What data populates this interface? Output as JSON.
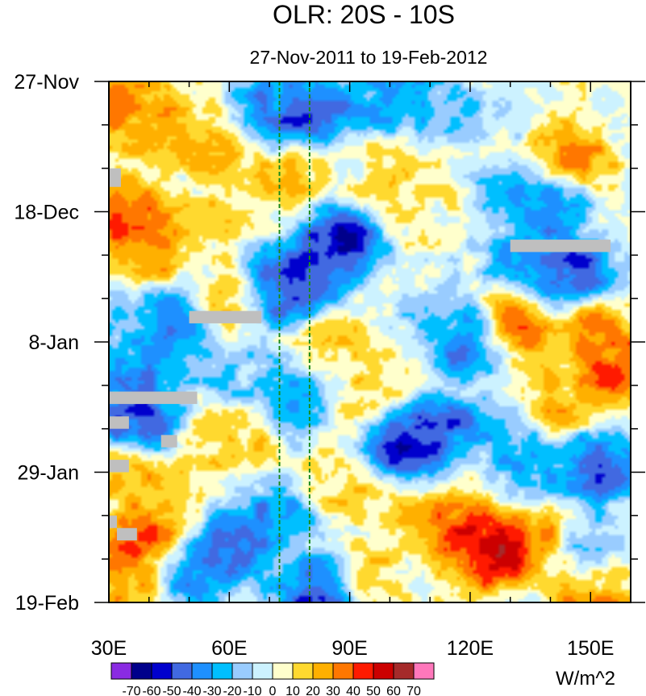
{
  "chart_data": {
    "type": "heatmap",
    "title": "OLR: 20S - 10S",
    "subtitle": "27-Nov-2011 to 19-Feb-2012",
    "x_axis": {
      "range": [
        30,
        160
      ],
      "ticks": [
        30,
        60,
        90,
        120,
        150
      ],
      "tick_labels": [
        "30E",
        "60E",
        "90E",
        "120E",
        "150E"
      ]
    },
    "y_axis": {
      "range_days": [
        0,
        84
      ],
      "ticks": [
        0,
        21,
        42,
        63,
        84
      ],
      "tick_labels": [
        "27-Nov",
        "18-Dec",
        "8-Jan",
        "29-Jan",
        "19-Feb"
      ]
    },
    "reference_lines_lon": [
      72.5,
      80
    ],
    "colorbar": {
      "labels": [
        "-70",
        "-60",
        "-50",
        "-40",
        "-30",
        "-20",
        "-10",
        "0",
        "10",
        "20",
        "30",
        "40",
        "50",
        "60",
        "70"
      ],
      "colors": [
        "#8a2be2",
        "#00008b",
        "#0000cd",
        "#4169e1",
        "#1e90ff",
        "#00bfff",
        "#99ccff",
        "#ccf2ff",
        "#ffffcc",
        "#ffd92f",
        "#ffb000",
        "#ff7700",
        "#ff1a00",
        "#cc0000",
        "#a52a2a",
        "#ff77bb"
      ],
      "units": "W/m^2"
    },
    "features": [
      {
        "lon": 80,
        "day": 5,
        "value": -60
      },
      {
        "lon": 100,
        "day": 3,
        "value": -40
      },
      {
        "lon": 70,
        "day": 4,
        "value": -45
      },
      {
        "lon": 115,
        "day": 5,
        "value": -25
      },
      {
        "lon": 55,
        "day": 10,
        "value": 30
      },
      {
        "lon": 40,
        "day": 6,
        "value": 25
      },
      {
        "lon": 33,
        "day": 4,
        "value": 45
      },
      {
        "lon": 145,
        "day": 13,
        "value": 35
      },
      {
        "lon": 140,
        "day": 20,
        "value": -50
      },
      {
        "lon": 130,
        "day": 19,
        "value": -30
      },
      {
        "lon": 87,
        "day": 26,
        "value": -70
      },
      {
        "lon": 78,
        "day": 33,
        "value": -60
      },
      {
        "lon": 72,
        "day": 33,
        "value": -55
      },
      {
        "lon": 145,
        "day": 31,
        "value": -60
      },
      {
        "lon": 135,
        "day": 28,
        "value": -40
      },
      {
        "lon": 35,
        "day": 22,
        "value": 50
      },
      {
        "lon": 40,
        "day": 27,
        "value": 40
      },
      {
        "lon": 46,
        "day": 39,
        "value": -50
      },
      {
        "lon": 36,
        "day": 40,
        "value": -25
      },
      {
        "lon": 60,
        "day": 35,
        "value": 20
      },
      {
        "lon": 120,
        "day": 42,
        "value": -60
      },
      {
        "lon": 113,
        "day": 38,
        "value": -20
      },
      {
        "lon": 130,
        "day": 40,
        "value": 45
      },
      {
        "lon": 150,
        "day": 40,
        "value": 35
      },
      {
        "lon": 155,
        "day": 46,
        "value": 50
      },
      {
        "lon": 85,
        "day": 42,
        "value": 15
      },
      {
        "lon": 37,
        "day": 48,
        "value": -45
      },
      {
        "lon": 37,
        "day": 55,
        "value": -60
      },
      {
        "lon": 60,
        "day": 47,
        "value": -20
      },
      {
        "lon": 75,
        "day": 51,
        "value": -35
      },
      {
        "lon": 103,
        "day": 59,
        "value": -70
      },
      {
        "lon": 112,
        "day": 56,
        "value": -55
      },
      {
        "lon": 130,
        "day": 57,
        "value": -30
      },
      {
        "lon": 152,
        "day": 62,
        "value": -55
      },
      {
        "lon": 135,
        "day": 63,
        "value": -30
      },
      {
        "lon": 60,
        "day": 58,
        "value": 20
      },
      {
        "lon": 35,
        "day": 63,
        "value": 30
      },
      {
        "lon": 125,
        "day": 76,
        "value": 70
      },
      {
        "lon": 118,
        "day": 72,
        "value": 50
      },
      {
        "lon": 135,
        "day": 74,
        "value": 40
      },
      {
        "lon": 105,
        "day": 70,
        "value": 20
      },
      {
        "lon": 40,
        "day": 74,
        "value": 50
      },
      {
        "lon": 35,
        "day": 80,
        "value": 35
      },
      {
        "lon": 62,
        "day": 75,
        "value": -55
      },
      {
        "lon": 50,
        "day": 79,
        "value": -45
      },
      {
        "lon": 72,
        "day": 70,
        "value": -40
      },
      {
        "lon": 82,
        "day": 82,
        "value": -60
      },
      {
        "lon": 150,
        "day": 76,
        "value": -25
      },
      {
        "lon": 150,
        "day": 82,
        "value": 35
      },
      {
        "lon": 95,
        "day": 80,
        "value": 15
      },
      {
        "lon": 75,
        "day": 16,
        "value": 20
      },
      {
        "lon": 100,
        "day": 15,
        "value": 15
      },
      {
        "lon": 110,
        "day": 20,
        "value": 10
      },
      {
        "lon": 55,
        "day": 22,
        "value": 15
      },
      {
        "lon": 95,
        "day": 50,
        "value": 15
      },
      {
        "lon": 140,
        "day": 52,
        "value": 25
      },
      {
        "lon": 50,
        "day": 64,
        "value": 10
      },
      {
        "lon": 88,
        "day": 65,
        "value": 20
      }
    ],
    "missing_data": [
      {
        "lon0": 30,
        "lon1": 33,
        "day0": 14,
        "day1": 17
      },
      {
        "lon0": 130,
        "lon1": 155,
        "day0": 25.5,
        "day1": 27.5
      },
      {
        "lon0": 50,
        "lon1": 68,
        "day0": 37,
        "day1": 39
      },
      {
        "lon0": 30,
        "lon1": 52,
        "day0": 50,
        "day1": 52
      },
      {
        "lon0": 30,
        "lon1": 35,
        "day0": 54,
        "day1": 56
      },
      {
        "lon0": 43,
        "lon1": 47,
        "day0": 57,
        "day1": 59
      },
      {
        "lon0": 30,
        "lon1": 35,
        "day0": 61,
        "day1": 63
      },
      {
        "lon0": 32,
        "lon1": 37,
        "day0": 72,
        "day1": 74
      },
      {
        "lon0": 30,
        "lon1": 32,
        "day0": 70,
        "day1": 72
      }
    ]
  }
}
